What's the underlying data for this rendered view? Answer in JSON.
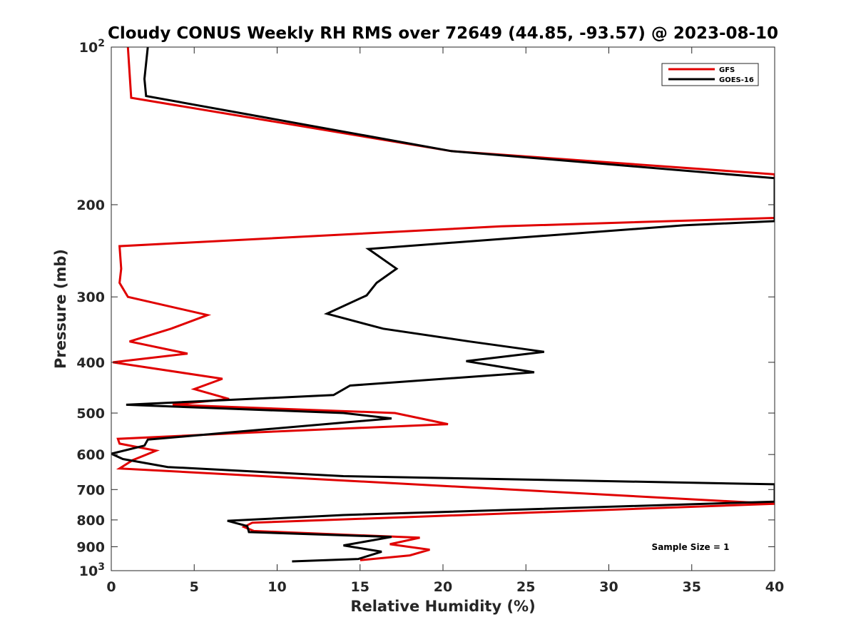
{
  "chart_data": {
    "type": "line",
    "title": "Cloudy CONUS Weekly RH RMS over 72649 (44.85, -93.57) @ 2023-08-10",
    "xlabel": "Relative Humidity (%)",
    "ylabel": "Pressure (mb)",
    "xlim": [
      0,
      40
    ],
    "ylim": [
      100,
      1000
    ],
    "y_scale": "log",
    "y_reversed": true,
    "grid": false,
    "legend": "top-right",
    "x_ticks": [
      0,
      5,
      10,
      15,
      20,
      25,
      30,
      35,
      40
    ],
    "x_tick_labels": [
      "0",
      "5",
      "10",
      "15",
      "20",
      "25",
      "30",
      "35",
      "40"
    ],
    "y_ticks": [
      100,
      200,
      300,
      400,
      500,
      600,
      700,
      800,
      900,
      1000
    ],
    "y_tick_labels": [
      {
        "base": "10",
        "sup": "2"
      },
      {
        "base": "200",
        "sup": ""
      },
      {
        "base": "300",
        "sup": ""
      },
      {
        "base": "400",
        "sup": ""
      },
      {
        "base": "500",
        "sup": ""
      },
      {
        "base": "600",
        "sup": ""
      },
      {
        "base": "700",
        "sup": ""
      },
      {
        "base": "800",
        "sup": ""
      },
      {
        "base": "900",
        "sup": ""
      },
      {
        "base": "10",
        "sup": "3"
      }
    ],
    "annotation": "Sample Size = 1",
    "series": [
      {
        "name": "GFS",
        "color": "#e00000",
        "points": [
          [
            1.0,
            100
          ],
          [
            1.2,
            125
          ],
          [
            20.5,
            158
          ],
          [
            40,
            175
          ],
          [
            40,
            212
          ],
          [
            23.5,
            220
          ],
          [
            0.5,
            240
          ],
          [
            0.6,
            265
          ],
          [
            0.5,
            282
          ],
          [
            1.0,
            300
          ],
          [
            5.8,
            325
          ],
          [
            3.6,
            345
          ],
          [
            1.1,
            365
          ],
          [
            4.6,
            385
          ],
          [
            0.1,
            400
          ],
          [
            6.7,
            430
          ],
          [
            5.0,
            450
          ],
          [
            7.1,
            470
          ],
          [
            3.7,
            482
          ],
          [
            17.1,
            500
          ],
          [
            20.3,
            525
          ],
          [
            8.3,
            545
          ],
          [
            0.4,
            560
          ],
          [
            0.5,
            572
          ],
          [
            2.7,
            590
          ],
          [
            1.3,
            615
          ],
          [
            0.5,
            638
          ],
          [
            40,
            745
          ],
          [
            8.5,
            810
          ],
          [
            8.0,
            825
          ],
          [
            8.6,
            840
          ],
          [
            18.6,
            865
          ],
          [
            16.8,
            890
          ],
          [
            19.2,
            912
          ],
          [
            18.0,
            935
          ],
          [
            15.0,
            955
          ]
        ]
      },
      {
        "name": "GOES-16",
        "color": "#000000",
        "points": [
          [
            2.2,
            100
          ],
          [
            2.0,
            115
          ],
          [
            2.1,
            124
          ],
          [
            20.5,
            158
          ],
          [
            40,
            178
          ],
          [
            40,
            215
          ],
          [
            34.5,
            219
          ],
          [
            15.5,
            243
          ],
          [
            17.2,
            265
          ],
          [
            16.0,
            282
          ],
          [
            15.4,
            298
          ],
          [
            13.0,
            323
          ],
          [
            16.4,
            345
          ],
          [
            21.6,
            365
          ],
          [
            26.1,
            382
          ],
          [
            21.4,
            398
          ],
          [
            25.5,
            418
          ],
          [
            14.4,
            443
          ],
          [
            13.4,
            462
          ],
          [
            0.9,
            482
          ],
          [
            14.0,
            500
          ],
          [
            16.9,
            512
          ],
          [
            7.6,
            543
          ],
          [
            2.2,
            562
          ],
          [
            2.0,
            577
          ],
          [
            0.0,
            598
          ],
          [
            0.7,
            612
          ],
          [
            3.4,
            634
          ],
          [
            14.0,
            660
          ],
          [
            40,
            684
          ],
          [
            40,
            738
          ],
          [
            14.0,
            783
          ],
          [
            7.0,
            803
          ],
          [
            8.2,
            822
          ],
          [
            8.3,
            844
          ],
          [
            16.9,
            862
          ],
          [
            14.0,
            895
          ],
          [
            16.3,
            920
          ],
          [
            14.9,
            950
          ],
          [
            10.9,
            960
          ]
        ]
      }
    ]
  }
}
